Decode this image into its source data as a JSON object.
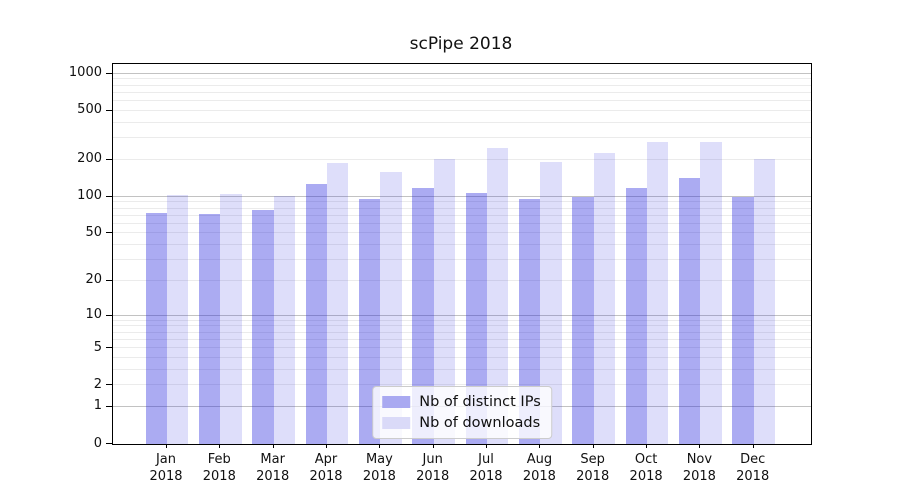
{
  "chart_data": {
    "type": "bar",
    "title": "scPipe 2018",
    "categories": [
      "Jan",
      "Feb",
      "Mar",
      "Apr",
      "May",
      "Jun",
      "Jul",
      "Aug",
      "Sep",
      "Oct",
      "Nov",
      "Dec"
    ],
    "x_tick_second_line": "2018",
    "series": [
      {
        "name": "Nb of distinct IPs",
        "color": "rgba(34,34,221,0.38)",
        "swatch_color": "#a9a9f1",
        "values": [
          74,
          72,
          78,
          126,
          95,
          117,
          108,
          96,
          99,
          117,
          142,
          99
        ]
      },
      {
        "name": "Nb of downloads",
        "color": "rgba(34,34,221,0.15)",
        "swatch_color": "#dadaf8",
        "values": [
          104,
          106,
          101,
          190,
          160,
          204,
          251,
          191,
          229,
          281,
          281,
          202
        ]
      }
    ],
    "y_ticks": [
      0,
      1,
      2,
      5,
      10,
      20,
      50,
      100,
      200,
      500,
      1000
    ],
    "y_major_gridlines": [
      1,
      10,
      100,
      1000
    ],
    "y_scale": "log1p",
    "ylim": [
      0,
      1200
    ],
    "grid": true,
    "legend_position": "lower center",
    "colors": {
      "grid_minor": "#ebebeb",
      "grid_major": "#c2c2c2",
      "axis": "#000000"
    }
  }
}
